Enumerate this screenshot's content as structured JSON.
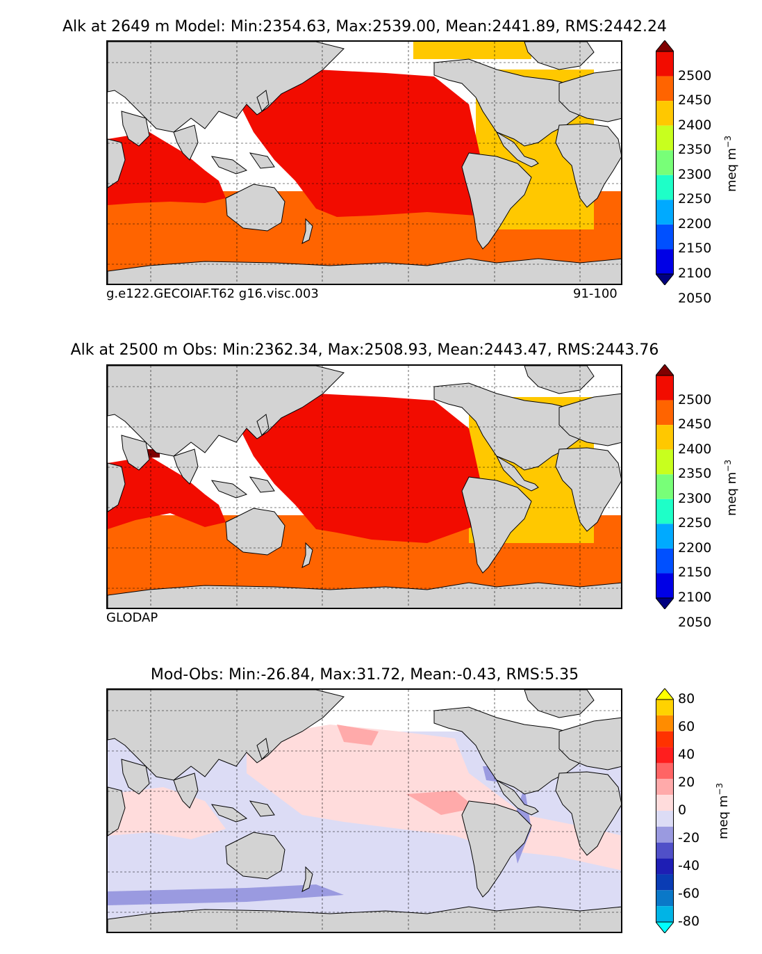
{
  "panels": [
    {
      "title": "Alk at 2649 m Model: Min:2354.63, Max:2539.00, Mean:2441.89, RMS:2442.24",
      "footer_left": "g.e122.GECOIAF.T62 g16.visc.003",
      "footer_right": "91-100",
      "colorbar": {
        "unit": "meq m",
        "unit_exp": "−3",
        "ticks": [
          "2500",
          "2450",
          "2400",
          "2350",
          "2300",
          "2250",
          "2200",
          "2150",
          "2100",
          "2050"
        ],
        "colors": [
          "#7f0000",
          "#f20c00",
          "#ff6400",
          "#ffc800",
          "#c8ff1e",
          "#78ff78",
          "#1effc8",
          "#00aaff",
          "#0050ff",
          "#0000e6",
          "#00007f"
        ]
      }
    },
    {
      "title": "Alk at 2500 m Obs: Min:2362.34, Max:2508.93, Mean:2443.47, RMS:2443.76",
      "footer_left": "GLODAP",
      "colorbar": {
        "unit": "meq m",
        "unit_exp": "−3",
        "ticks": [
          "2500",
          "2450",
          "2400",
          "2350",
          "2300",
          "2250",
          "2200",
          "2150",
          "2100",
          "2050"
        ],
        "colors": [
          "#7f0000",
          "#f20c00",
          "#ff6400",
          "#ffc800",
          "#c8ff1e",
          "#78ff78",
          "#1effc8",
          "#00aaff",
          "#0050ff",
          "#0000e6",
          "#00007f"
        ]
      }
    },
    {
      "title": "Mod-Obs: Min:-26.84, Max:31.72, Mean:-0.43, RMS:5.35",
      "colorbar": {
        "unit": "meq m",
        "unit_exp": "−3",
        "ticks": [
          "80",
          "60",
          "40",
          "20",
          "0",
          "-20",
          "-40",
          "-60",
          "-80"
        ],
        "colors": [
          "#ffff00",
          "#ffd200",
          "#ff8c00",
          "#ff3200",
          "#ff1e1e",
          "#ff6464",
          "#ffaaaa",
          "#ffdcdc",
          "#dcdcf5",
          "#9a9ae0",
          "#5050c8",
          "#1e1eb4",
          "#0a3cb4",
          "#0a78c8",
          "#00b4e6",
          "#00ffff"
        ]
      }
    }
  ]
}
